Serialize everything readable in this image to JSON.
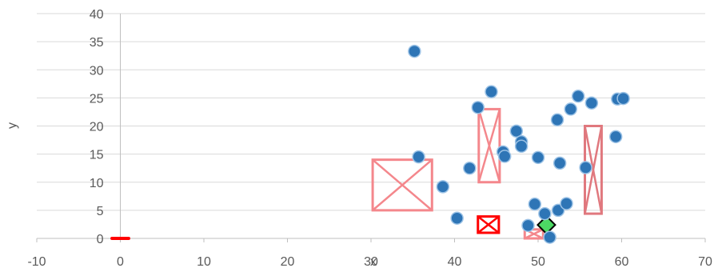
{
  "chart_data": {
    "type": "scatter",
    "title": "",
    "xlabel": "x",
    "ylabel": "y",
    "xlim": [
      -10,
      70
    ],
    "ylim": [
      0,
      40
    ],
    "x_ticks": [
      -10,
      0,
      10,
      20,
      30,
      40,
      50,
      60,
      70
    ],
    "y_ticks": [
      0,
      5,
      10,
      15,
      20,
      25,
      30,
      35,
      40
    ],
    "x_tick_labels": [
      "-10",
      "0",
      "10",
      "20",
      "30",
      "40",
      "50",
      "60",
      "70"
    ],
    "y_tick_labels": [
      "0",
      "5",
      "10",
      "15",
      "20",
      "25",
      "30",
      "35",
      "40"
    ],
    "grid": "horizontal",
    "legend": "none",
    "colors": {
      "points": "#2E75B6",
      "point_edge": "#9DC3E6",
      "box_light": "#F4878C",
      "box_dark": "#E0787E",
      "box_red": "#FF0000",
      "green_marker": "#4CD964",
      "grid": "#D9D9D9",
      "axis": "#BFBFBF"
    },
    "series": [
      {
        "values": [
          [
            35.2,
            33.3
          ],
          [
            44.4,
            26.1
          ],
          [
            42.8,
            23.3
          ],
          [
            52.3,
            21.1
          ],
          [
            54.8,
            25.3
          ],
          [
            53.9,
            23.0
          ],
          [
            56.4,
            24.1
          ],
          [
            59.5,
            24.8
          ],
          [
            60.2,
            24.9
          ],
          [
            47.4,
            19.1
          ],
          [
            48.0,
            17.2
          ],
          [
            48.0,
            16.4
          ],
          [
            45.8,
            15.4
          ],
          [
            46.0,
            14.6
          ],
          [
            50.0,
            14.4
          ],
          [
            35.7,
            14.5
          ],
          [
            52.6,
            13.4
          ],
          [
            55.7,
            12.6
          ],
          [
            59.3,
            18.1
          ],
          [
            41.8,
            12.5
          ],
          [
            38.6,
            9.2
          ],
          [
            40.3,
            3.6
          ],
          [
            49.6,
            6.1
          ],
          [
            50.8,
            4.4
          ],
          [
            52.4,
            5.0
          ],
          [
            53.4,
            6.2
          ],
          [
            48.8,
            2.3
          ],
          [
            51.4,
            0.2
          ]
        ]
      }
    ],
    "annotation_boxes": [
      {
        "x": [
          30.2,
          37.3
        ],
        "y": [
          5.0,
          14.0
        ],
        "style": "light"
      },
      {
        "x": [
          42.9,
          45.4
        ],
        "y": [
          10.0,
          23.0
        ],
        "style": "light"
      },
      {
        "x": [
          55.6,
          57.6
        ],
        "y": [
          4.4,
          20.0
        ],
        "style": "dark"
      },
      {
        "x": [
          42.8,
          45.3
        ],
        "y": [
          1.0,
          3.9
        ],
        "style": "red"
      },
      {
        "x": [
          48.4,
          50.6
        ],
        "y": [
          0.0,
          1.6
        ],
        "style": "light"
      }
    ],
    "extra_markers": [
      {
        "shape": "dash",
        "x": [
          -1.0,
          1.0
        ],
        "y": 0.0,
        "color": "#FF0000"
      },
      {
        "shape": "diamond",
        "x": 51.0,
        "y": 2.4,
        "color": "#4CD964"
      }
    ]
  }
}
